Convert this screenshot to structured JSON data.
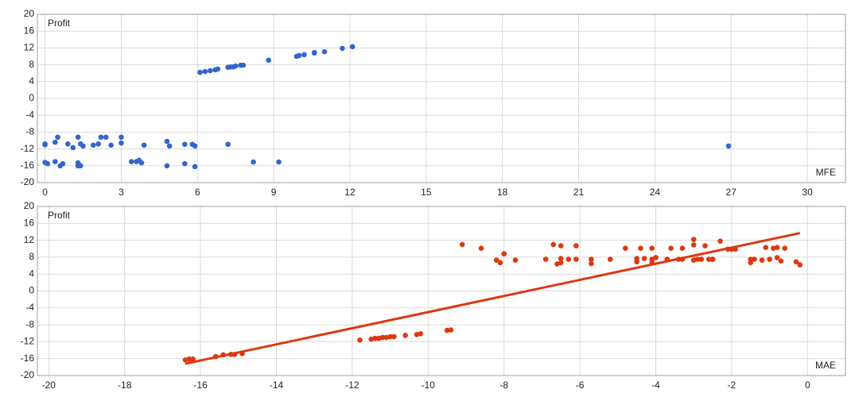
{
  "chart_data": [
    {
      "type": "scatter",
      "y_label": "Profit",
      "x_label": "MFE",
      "color": "#3366cc",
      "xlim": [
        -0.3,
        31.5
      ],
      "ylim": [
        -20,
        20
      ],
      "xticks": [
        0,
        3,
        6,
        9,
        12,
        15,
        18,
        21,
        24,
        27,
        30
      ],
      "yticks": [
        -20,
        -16,
        -12,
        -8,
        -4,
        0,
        4,
        8,
        12,
        16,
        20
      ],
      "grid": true,
      "x": [
        0,
        0,
        0,
        0.1,
        0.4,
        0.5,
        0.4,
        0.6,
        0.7,
        0.9,
        1.1,
        1.3,
        1.4,
        1.5,
        1.3,
        1.3,
        1.4,
        1.9,
        2.1,
        2.2,
        2.4,
        2.6,
        3.0,
        3.0,
        3.4,
        3.6,
        3.7,
        3.8,
        3.9,
        4.8,
        4.9,
        4.8,
        5.5,
        5.5,
        5.8,
        5.9,
        5.9,
        7.2,
        8.2,
        9.2,
        26.9,
        6.1,
        6.3,
        6.5,
        6.7,
        6.8,
        7.2,
        7.3,
        7.4,
        7.5,
        7.7,
        7.8,
        8.8,
        9.9,
        10.0,
        10.2,
        10.6,
        10.6,
        11.0,
        11.7,
        12.1
      ],
      "y": [
        -11,
        -10.8,
        -15.2,
        -15.5,
        -10.4,
        -9.2,
        -15,
        -16,
        -15.5,
        -10.8,
        -11.7,
        -9.2,
        -10.8,
        -11.3,
        -15.3,
        -16,
        -16,
        -11.1,
        -10.8,
        -9.2,
        -9.2,
        -11.1,
        -10.6,
        -9.2,
        -15,
        -15,
        -14.7,
        -15.3,
        -11.1,
        -10.2,
        -11.3,
        -16,
        -10.9,
        -15.5,
        -10.9,
        -11.3,
        -16.2,
        -10.9,
        -15.1,
        -15.1,
        -11.3,
        6.2,
        6.4,
        6.6,
        6.8,
        7,
        7.4,
        7.5,
        7.5,
        7.7,
        7.9,
        7.9,
        9.1,
        10,
        10.2,
        10.4,
        10.8,
        10.9,
        11.1,
        11.9,
        12.3
      ]
    },
    {
      "type": "scatter",
      "y_label": "Profit",
      "x_label": "MAE",
      "color": "#dc3912",
      "xlim": [
        -20.3,
        1.0
      ],
      "ylim": [
        -20,
        20
      ],
      "xticks": [
        -20,
        -18,
        -16,
        -14,
        -12,
        -10,
        -8,
        -6,
        -4,
        -2,
        0
      ],
      "yticks": [
        -20,
        -16,
        -12,
        -8,
        -4,
        0,
        4,
        8,
        12,
        16,
        20
      ],
      "grid": true,
      "x": [
        -16.4,
        -16.3,
        -16.2,
        -15.6,
        -15.4,
        -15.2,
        -15.1,
        -14.9,
        -11.8,
        -11.5,
        -11.4,
        -11.3,
        -11.2,
        -11.1,
        -11,
        -10.9,
        -10.6,
        -10.3,
        -10.2,
        -9.5,
        -9.4,
        -9.1,
        -8.6,
        -8.2,
        -8.1,
        -8,
        -7.7,
        -6.9,
        -6.7,
        -6.6,
        -6.5,
        -6.5,
        -6.5,
        -6.3,
        -6.1,
        -6.1,
        -5.7,
        -5.7,
        -5.2,
        -4.8,
        -4.5,
        -4.5,
        -4.4,
        -4.3,
        -4.1,
        -4.1,
        -4.1,
        -4,
        -3.7,
        -3.6,
        -3.4,
        -3.3,
        -3.3,
        -3,
        -3,
        -3,
        -2.9,
        -2.8,
        -2.7,
        -2.6,
        -2.5,
        -2.5,
        -2.3,
        -2.1,
        -2,
        -1.9,
        -1.5,
        -1.5,
        -1.4,
        -1.2,
        -1.1,
        -1,
        -0.9,
        -0.8,
        -0.8,
        -0.7,
        -0.6,
        -0.3,
        -0.2
      ],
      "y": [
        -16.3,
        -16.1,
        -16.1,
        -15.5,
        -15.1,
        -15,
        -15,
        -14.8,
        -11.6,
        -11.4,
        -11.2,
        -11.2,
        -11,
        -11,
        -10.8,
        -10.8,
        -10.5,
        -10.3,
        -10.1,
        -9.3,
        -9.2,
        11,
        10.1,
        7.3,
        6.7,
        8.8,
        7.3,
        7.5,
        11,
        6.4,
        7.7,
        10.7,
        6.7,
        7.5,
        7.5,
        10.7,
        7.5,
        6.5,
        7.5,
        10.1,
        6.9,
        7.7,
        10.1,
        7.7,
        7.5,
        10.1,
        6.7,
        7.9,
        7.5,
        10.1,
        7.5,
        7.5,
        10.1,
        12.2,
        10.9,
        7.3,
        7.5,
        7.5,
        10.7,
        7.5,
        7.5,
        7.5,
        11.8,
        9.9,
        9.9,
        9.9,
        7.5,
        6.7,
        7.5,
        7.3,
        10.3,
        7.5,
        10.1,
        7.9,
        10.3,
        7.1,
        10.1,
        6.9,
        6.2
      ],
      "trendline": {
        "x": [
          -16.4,
          -0.2
        ],
        "y": [
          -17.2,
          13.7
        ]
      }
    }
  ]
}
